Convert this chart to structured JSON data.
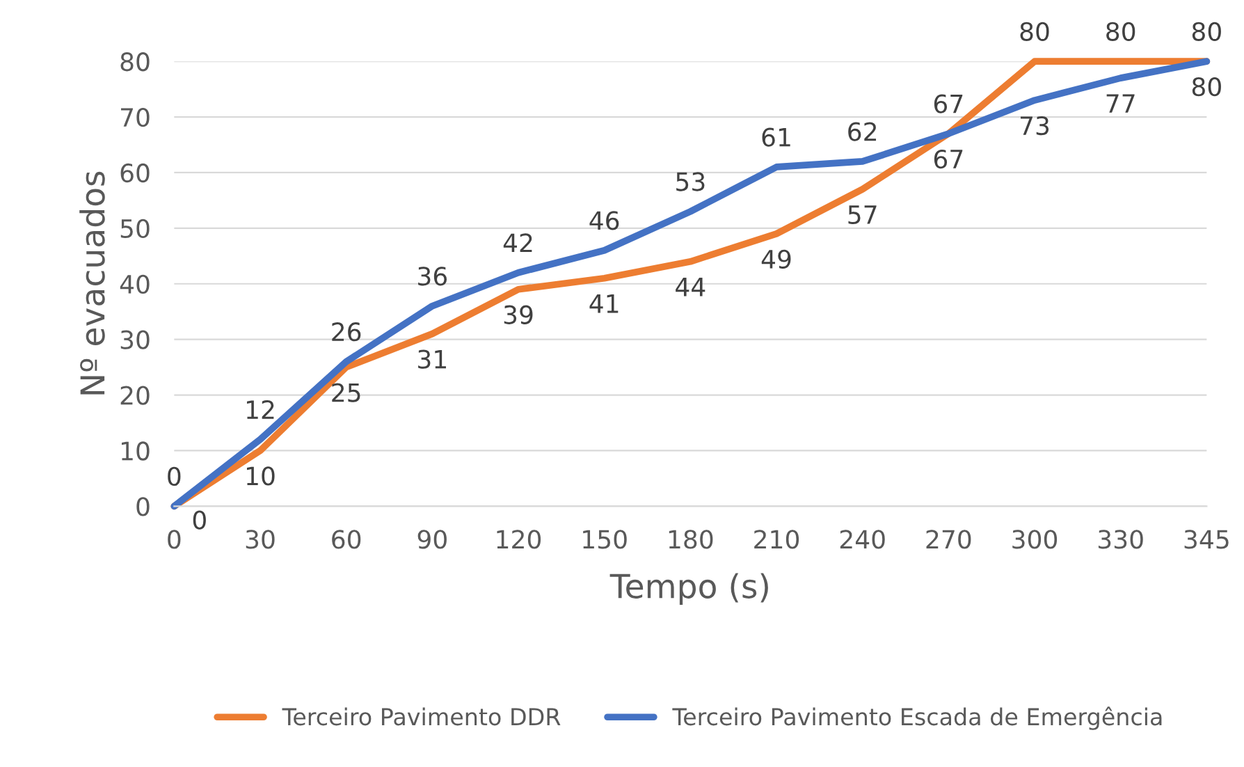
{
  "chart_data": {
    "type": "line",
    "xlabel": "Tempo (s)",
    "ylabel": "Nº evacuados",
    "categories": [
      "0",
      "30",
      "60",
      "90",
      "120",
      "150",
      "180",
      "210",
      "240",
      "270",
      "300",
      "330",
      "345"
    ],
    "series": [
      {
        "name": "Terceiro Pavimento DDR",
        "color": "#ed7d31",
        "values": [
          0,
          10,
          25,
          31,
          39,
          41,
          44,
          49,
          57,
          67,
          80,
          80,
          80
        ]
      },
      {
        "name": "Terceiro Pavimento Escada de Emergência",
        "color": "#4472c4",
        "values": [
          0,
          12,
          26,
          36,
          42,
          46,
          53,
          61,
          62,
          67,
          73,
          77,
          80
        ]
      }
    ],
    "ylim": [
      0,
      80
    ],
    "yticks": [
      0,
      10,
      20,
      30,
      40,
      50,
      60,
      70,
      80
    ],
    "grid": "y",
    "legend": "bottom",
    "data_labels": true,
    "marker": "none",
    "line_style": "solid"
  }
}
